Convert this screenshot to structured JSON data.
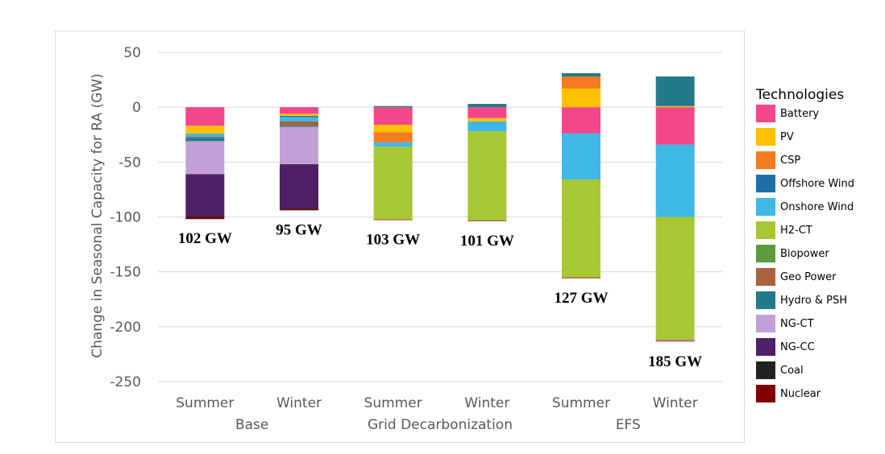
{
  "chart_data": {
    "type": "bar",
    "stacked": true,
    "ylabel": "Change in Seasonal Capacity for RA (GW)",
    "xlabel": "",
    "ylim": [
      -250,
      50
    ],
    "yticks": [
      50,
      0,
      -50,
      -100,
      -150,
      -200,
      -250
    ],
    "grid": true,
    "legend_title": "Technologies",
    "legend_position": "right",
    "categories": [
      "Summer",
      "Winter",
      "Summer",
      "Winter",
      "Summer",
      "Winter"
    ],
    "groups": [
      {
        "label": "Base",
        "categories": [
          0,
          1
        ]
      },
      {
        "label": "Grid Decarbonization",
        "categories": [
          2,
          3
        ]
      },
      {
        "label": "EFS",
        "categories": [
          4,
          5
        ]
      }
    ],
    "totals": [
      "102 GW",
      "95 GW",
      "103 GW",
      "101 GW",
      "127 GW",
      "185 GW"
    ],
    "series": [
      {
        "name": "Battery",
        "color": "#f2478a",
        "values": [
          -17,
          -6,
          -16,
          -10,
          -24,
          -34
        ]
      },
      {
        "name": "PV",
        "color": "#ffc000",
        "values": [
          -7,
          -2,
          -7,
          -3,
          17,
          1
        ]
      },
      {
        "name": "CSP",
        "color": "#f47b20",
        "values": [
          0,
          0,
          -9,
          0,
          11,
          0
        ]
      },
      {
        "name": "Offshore Wind",
        "color": "#1f6fa6",
        "values": [
          0,
          -1,
          0,
          0,
          0,
          0
        ]
      },
      {
        "name": "Onshore Wind",
        "color": "#3fb8e6",
        "values": [
          -3,
          -4,
          -4,
          -9,
          -42,
          -66
        ]
      },
      {
        "name": "H2-CT",
        "color": "#a8c735",
        "values": [
          0,
          0,
          -66,
          -81,
          -89,
          -112
        ]
      },
      {
        "name": "Biopower",
        "color": "#5b9a3f",
        "values": [
          0,
          0,
          0,
          0,
          0,
          0
        ]
      },
      {
        "name": "Geo Power",
        "color": "#a8623c",
        "values": [
          -1,
          -4,
          -1,
          -1,
          -1,
          -1
        ]
      },
      {
        "name": "Hydro & PSH",
        "color": "#227a8a",
        "values": [
          -3,
          -1,
          1,
          3,
          3,
          27
        ]
      },
      {
        "name": "NG-CT",
        "color": "#c39fd8",
        "values": [
          -30,
          -34,
          0,
          0,
          0,
          -1
        ]
      },
      {
        "name": "NG-CC",
        "color": "#4f2065",
        "values": [
          -38,
          -40,
          0,
          0,
          0,
          0
        ]
      },
      {
        "name": "Coal",
        "color": "#222222",
        "values": [
          -1,
          -1,
          0,
          0,
          0,
          0
        ]
      },
      {
        "name": "Nuclear",
        "color": "#800000",
        "values": [
          -2,
          -1,
          0,
          0,
          0,
          0
        ]
      }
    ]
  }
}
